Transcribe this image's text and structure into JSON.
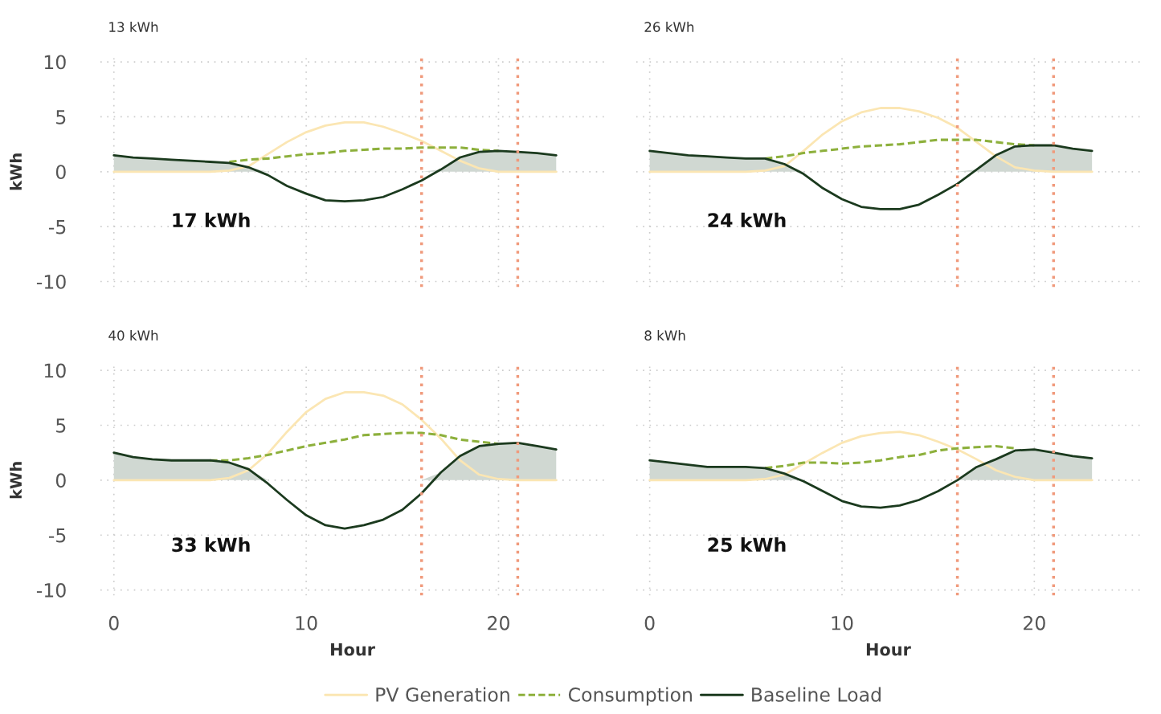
{
  "chart_data": [
    {
      "type": "line",
      "title": "13 kWh",
      "ylabel": "kWh",
      "x": [
        0,
        1,
        2,
        3,
        4,
        5,
        6,
        7,
        8,
        9,
        10,
        11,
        12,
        13,
        14,
        15,
        16,
        17,
        18,
        19,
        20,
        21,
        22,
        23
      ],
      "xlim": [
        -0.7,
        25.5
      ],
      "xticks": [
        0,
        10,
        20
      ],
      "ylim": [
        -10.5,
        10.5
      ],
      "yticks": [
        -10,
        -5,
        0,
        5,
        10
      ],
      "grid": true,
      "tick_labels": "y",
      "legend": "bottom",
      "annotations": [
        "17 kWh"
      ],
      "ref_lines": [
        {
          "axis": "x",
          "value": 16,
          "color": "#f09a7c",
          "line_style": "dotted"
        },
        {
          "axis": "x",
          "value": 21,
          "color": "#f09a7c",
          "line_style": "dotted"
        }
      ],
      "series": [
        {
          "type": "area",
          "color": "#d0d8d2",
          "values": [
            1.5,
            1.3,
            1.2,
            1.1,
            1.0,
            0.9,
            0.8,
            0.4,
            0,
            0,
            0,
            0,
            0,
            0,
            0,
            0,
            0,
            0.2,
            1.3,
            1.8,
            1.9,
            1.8,
            1.7,
            1.5
          ]
        },
        {
          "name": "PV Generation",
          "color": "#fbe6b3",
          "line_style": "solid",
          "values": [
            0,
            0,
            0,
            0,
            0,
            0,
            0.1,
            0.5,
            1.6,
            2.7,
            3.6,
            4.2,
            4.5,
            4.5,
            4.1,
            3.5,
            2.8,
            1.9,
            1.0,
            0.3,
            0,
            0,
            0,
            0
          ]
        },
        {
          "name": "Consumption",
          "color": "#8db03c",
          "line_style": "dashed",
          "values": [
            null,
            null,
            null,
            null,
            null,
            null,
            0.9,
            1.1,
            1.2,
            1.4,
            1.6,
            1.7,
            1.9,
            2.0,
            2.1,
            2.1,
            2.2,
            2.2,
            2.2,
            2.0,
            1.9,
            null,
            null,
            null
          ]
        },
        {
          "name": "Baseline Load",
          "color": "#1b3a1e",
          "line_style": "solid",
          "values": [
            1.5,
            1.3,
            1.2,
            1.1,
            1.0,
            0.9,
            0.8,
            0.4,
            -0.3,
            -1.3,
            -2.0,
            -2.6,
            -2.7,
            -2.6,
            -2.3,
            -1.6,
            -0.8,
            0.2,
            1.3,
            1.8,
            1.9,
            1.8,
            1.7,
            1.5
          ]
        }
      ]
    },
    {
      "type": "line",
      "title": "26 kWh",
      "x": [
        0,
        1,
        2,
        3,
        4,
        5,
        6,
        7,
        8,
        9,
        10,
        11,
        12,
        13,
        14,
        15,
        16,
        17,
        18,
        19,
        20,
        21,
        22,
        23
      ],
      "xlim": [
        -0.7,
        25.5
      ],
      "xticks": [
        0,
        10,
        20
      ],
      "ylim": [
        -10.5,
        10.5
      ],
      "yticks": [
        -10,
        -5,
        0,
        5,
        10
      ],
      "grid": true,
      "tick_labels": false,
      "annotations": [
        "24 kWh"
      ],
      "ref_lines": [
        {
          "axis": "x",
          "value": 16,
          "color": "#f09a7c",
          "line_style": "dotted"
        },
        {
          "axis": "x",
          "value": 21,
          "color": "#f09a7c",
          "line_style": "dotted"
        }
      ],
      "series": [
        {
          "type": "area",
          "color": "#d0d8d2",
          "values": [
            1.9,
            1.7,
            1.5,
            1.4,
            1.3,
            1.2,
            1.2,
            0.7,
            0,
            0,
            0,
            0,
            0,
            0,
            0,
            0,
            0,
            0.2,
            1.5,
            2.3,
            2.4,
            2.4,
            2.1,
            1.9
          ]
        },
        {
          "color": "#fbe6b3",
          "line_style": "solid",
          "values": [
            0,
            0,
            0,
            0,
            0,
            0,
            0.1,
            0.5,
            1.9,
            3.4,
            4.6,
            5.4,
            5.8,
            5.8,
            5.5,
            4.9,
            4.0,
            2.7,
            1.4,
            0.4,
            0.1,
            0,
            0,
            0
          ]
        },
        {
          "color": "#8db03c",
          "line_style": "dashed",
          "values": [
            null,
            null,
            null,
            null,
            null,
            null,
            1.2,
            1.4,
            1.7,
            1.9,
            2.1,
            2.3,
            2.4,
            2.5,
            2.7,
            2.9,
            2.9,
            2.9,
            2.7,
            2.5,
            2.4,
            null,
            null,
            null
          ]
        },
        {
          "color": "#1b3a1e",
          "line_style": "solid",
          "values": [
            1.9,
            1.7,
            1.5,
            1.4,
            1.3,
            1.2,
            1.2,
            0.7,
            -0.2,
            -1.5,
            -2.5,
            -3.2,
            -3.4,
            -3.4,
            -3.0,
            -2.1,
            -1.1,
            0.2,
            1.5,
            2.3,
            2.4,
            2.4,
            2.1,
            1.9
          ]
        }
      ]
    },
    {
      "type": "line",
      "title": "40 kWh",
      "xlabel": "Hour",
      "ylabel": "kWh",
      "x": [
        0,
        1,
        2,
        3,
        4,
        5,
        6,
        7,
        8,
        9,
        10,
        11,
        12,
        13,
        14,
        15,
        16,
        17,
        18,
        19,
        20,
        21,
        22,
        23
      ],
      "xlim": [
        -0.7,
        25.5
      ],
      "xticks": [
        0,
        10,
        20
      ],
      "ylim": [
        -10.5,
        10.5
      ],
      "yticks": [
        -10,
        -5,
        0,
        5,
        10
      ],
      "grid": true,
      "annotations": [
        "33 kWh"
      ],
      "ref_lines": [
        {
          "axis": "x",
          "value": 16,
          "color": "#f09a7c",
          "line_style": "dotted"
        },
        {
          "axis": "x",
          "value": 21,
          "color": "#f09a7c",
          "line_style": "dotted"
        }
      ],
      "series": [
        {
          "type": "area",
          "color": "#d0d8d2",
          "values": [
            2.5,
            2.1,
            1.9,
            1.8,
            1.8,
            1.8,
            1.6,
            1.0,
            0,
            0,
            0,
            0,
            0,
            0,
            0,
            0,
            0,
            0.7,
            2.2,
            3.1,
            3.3,
            3.4,
            3.1,
            2.8
          ]
        },
        {
          "color": "#fbe6b3",
          "line_style": "solid",
          "values": [
            0,
            0,
            0,
            0,
            0,
            0,
            0.2,
            0.9,
            2.4,
            4.4,
            6.2,
            7.4,
            8.0,
            8.0,
            7.7,
            6.9,
            5.5,
            3.8,
            1.8,
            0.5,
            0.1,
            0,
            0,
            0
          ]
        },
        {
          "color": "#8db03c",
          "line_style": "dashed",
          "values": [
            null,
            null,
            null,
            null,
            null,
            1.8,
            1.8,
            2.0,
            2.3,
            2.7,
            3.1,
            3.4,
            3.7,
            4.1,
            4.2,
            4.3,
            4.3,
            4.1,
            3.7,
            3.5,
            3.3,
            null,
            null,
            null
          ]
        },
        {
          "color": "#1b3a1e",
          "line_style": "solid",
          "values": [
            2.5,
            2.1,
            1.9,
            1.8,
            1.8,
            1.8,
            1.6,
            1.0,
            -0.3,
            -1.8,
            -3.2,
            -4.1,
            -4.4,
            -4.1,
            -3.6,
            -2.7,
            -1.2,
            0.7,
            2.2,
            3.1,
            3.3,
            3.4,
            3.1,
            2.8
          ]
        }
      ]
    },
    {
      "type": "line",
      "title": "8 kWh",
      "xlabel": "Hour",
      "x": [
        0,
        1,
        2,
        3,
        4,
        5,
        6,
        7,
        8,
        9,
        10,
        11,
        12,
        13,
        14,
        15,
        16,
        17,
        18,
        19,
        20,
        21,
        22,
        23
      ],
      "xlim": [
        -0.7,
        25.5
      ],
      "xticks": [
        0,
        10,
        20
      ],
      "ylim": [
        -10.5,
        10.5
      ],
      "yticks": [
        -10,
        -5,
        0,
        5,
        10
      ],
      "grid": true,
      "tick_labels": "x",
      "annotations": [
        "25 kWh"
      ],
      "ref_lines": [
        {
          "axis": "x",
          "value": 16,
          "color": "#f09a7c",
          "line_style": "dotted"
        },
        {
          "axis": "x",
          "value": 21,
          "color": "#f09a7c",
          "line_style": "dotted"
        }
      ],
      "series": [
        {
          "type": "area",
          "color": "#d0d8d2",
          "values": [
            1.8,
            1.6,
            1.4,
            1.2,
            1.2,
            1.2,
            1.1,
            0.6,
            0,
            0,
            0,
            0,
            0,
            0,
            0,
            0,
            0,
            1.2,
            1.9,
            2.7,
            2.8,
            2.5,
            2.2,
            2.0
          ]
        },
        {
          "color": "#fbe6b3",
          "line_style": "solid",
          "values": [
            0,
            0,
            0,
            0,
            0,
            0,
            0.1,
            0.5,
            1.5,
            2.5,
            3.4,
            4.0,
            4.3,
            4.4,
            4.1,
            3.5,
            2.8,
            1.9,
            0.9,
            0.3,
            0,
            0,
            0,
            0
          ]
        },
        {
          "color": "#8db03c",
          "line_style": "dashed",
          "values": [
            null,
            null,
            null,
            null,
            null,
            null,
            1.1,
            1.3,
            1.6,
            1.6,
            1.5,
            1.6,
            1.8,
            2.1,
            2.3,
            2.7,
            2.9,
            3.0,
            3.1,
            2.9,
            null,
            null,
            null,
            null
          ]
        },
        {
          "color": "#1b3a1e",
          "line_style": "solid",
          "values": [
            1.8,
            1.6,
            1.4,
            1.2,
            1.2,
            1.2,
            1.1,
            0.6,
            -0.1,
            -1.0,
            -1.9,
            -2.4,
            -2.5,
            -2.3,
            -1.8,
            -1.0,
            0,
            1.2,
            1.9,
            2.7,
            2.8,
            2.5,
            2.2,
            2.0
          ]
        }
      ]
    }
  ]
}
